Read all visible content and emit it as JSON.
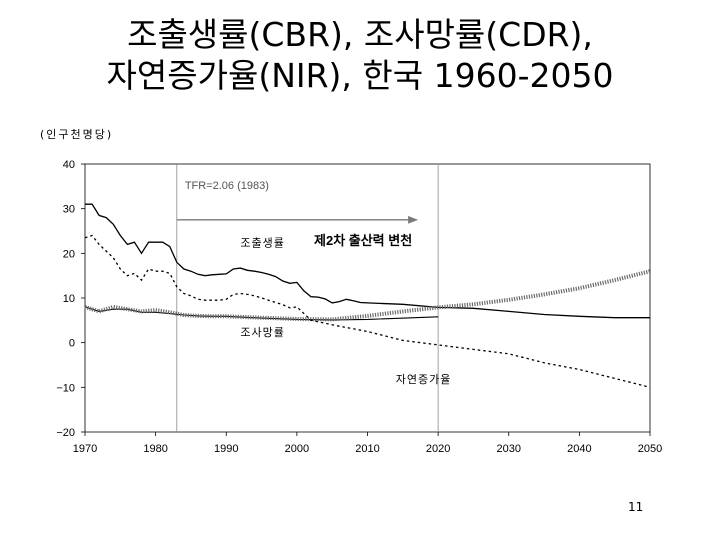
{
  "slide": {
    "title_line1": "조출생률(CBR), 조사망률(CDR),",
    "title_line2": "자연증가율(NIR), 한국 1960-2050",
    "page_number": "11"
  },
  "chart_data": {
    "type": "line",
    "unit_label": "(인구천명당)",
    "xlim": [
      1970,
      2050
    ],
    "ylim": [
      -20,
      40
    ],
    "x_ticks": [
      1970,
      1980,
      1990,
      2000,
      2010,
      2020,
      2030,
      2040,
      2050
    ],
    "y_ticks": [
      40,
      30,
      20,
      10,
      0,
      -10,
      -20
    ],
    "y_tick_labels": [
      "40",
      "30",
      "20",
      "10",
      "0",
      "−10",
      "−20"
    ],
    "annotations": {
      "tfr_year": 1983,
      "tfr_label": "TFR=2.06 (1983)",
      "transition_label": "제2차 출산력 변천",
      "transition_arrow": {
        "from_x": 1983,
        "to_x": 2017,
        "y": 27.5
      },
      "reference_year": 2020
    },
    "series": [
      {
        "name": "조출생률",
        "style": "solid",
        "label_pos": {
          "x": 1992,
          "y": 21.5
        },
        "x": [
          1970,
          1971,
          1972,
          1973,
          1974,
          1975,
          1976,
          1977,
          1978,
          1979,
          1980,
          1981,
          1982,
          1983,
          1984,
          1985,
          1986,
          1987,
          1988,
          1989,
          1990,
          1991,
          1992,
          1993,
          1994,
          1995,
          1996,
          1997,
          1998,
          1999,
          2000,
          2001,
          2002,
          2003,
          2004,
          2005,
          2006,
          2007,
          2008,
          2009,
          2010,
          2015,
          2020,
          2025,
          2030,
          2035,
          2040,
          2045,
          2050
        ],
        "values": [
          31,
          31,
          28.5,
          28,
          26.5,
          24,
          22,
          22.5,
          20,
          22.5,
          22.5,
          22.5,
          21.5,
          18,
          16.5,
          16,
          15.3,
          15,
          15.2,
          15.3,
          15.4,
          16.5,
          16.7,
          16.2,
          16,
          15.7,
          15.3,
          14.8,
          13.8,
          13.3,
          13.5,
          11.6,
          10.3,
          10.2,
          9.8,
          8.9,
          9.2,
          9.7,
          9.4,
          9.0,
          8.9,
          8.6,
          7.9,
          7.7,
          7.0,
          6.3,
          5.9,
          5.6,
          5.6
        ]
      },
      {
        "name": "조사망률",
        "style": "solid-thin",
        "label_pos": {
          "x": 1992,
          "y": 1.5
        },
        "x": [
          1970,
          1972,
          1974,
          1976,
          1978,
          1980,
          1982,
          1984,
          1986,
          1988,
          1990,
          1995,
          2000,
          2005,
          2010,
          2020
        ],
        "values": [
          8,
          7,
          7.5,
          7.5,
          6.8,
          6.8,
          6.5,
          6.2,
          6.0,
          5.9,
          5.9,
          5.5,
          5.2,
          5.1,
          5.2,
          5.8
        ]
      },
      {
        "name": "",
        "style": "hatched",
        "x": [
          1970,
          1972,
          1974,
          1976,
          1978,
          1980,
          1982,
          1984,
          1986,
          1988,
          1990,
          1995,
          2000,
          2005,
          2010,
          2015,
          2020,
          2025,
          2030,
          2035,
          2040,
          2045,
          2050
        ],
        "values": [
          8,
          7,
          8,
          7.5,
          7,
          7.3,
          6.8,
          6.2,
          6,
          5.9,
          5.9,
          5.6,
          5.3,
          5.2,
          6,
          7,
          7.9,
          8.6,
          9.6,
          10.8,
          12.2,
          14,
          16
        ]
      },
      {
        "name": "자연증가율",
        "style": "dotted",
        "label_pos": {
          "x": 2014,
          "y": -9
        },
        "x": [
          1970,
          1971,
          1972,
          1973,
          1974,
          1975,
          1976,
          1977,
          1978,
          1979,
          1980,
          1981,
          1982,
          1983,
          1984,
          1985,
          1986,
          1987,
          1988,
          1989,
          1990,
          1991,
          1992,
          1993,
          1994,
          1995,
          1996,
          1997,
          1998,
          1999,
          2000,
          2002,
          2005,
          2010,
          2015,
          2020,
          2025,
          2030,
          2035,
          2040,
          2045,
          2050
        ],
        "values": [
          23.5,
          24,
          22,
          20.5,
          19,
          16.5,
          15,
          15.5,
          14,
          16.5,
          16,
          16,
          15.5,
          12.5,
          11,
          10.5,
          9.7,
          9.5,
          9.5,
          9.5,
          9.7,
          10.8,
          11,
          10.8,
          10.5,
          10,
          9.5,
          9,
          8.5,
          7.8,
          8,
          5,
          4,
          2.5,
          0.5,
          -0.5,
          -1.5,
          -2.5,
          -4.5,
          -6,
          -8,
          -10
        ]
      }
    ]
  }
}
